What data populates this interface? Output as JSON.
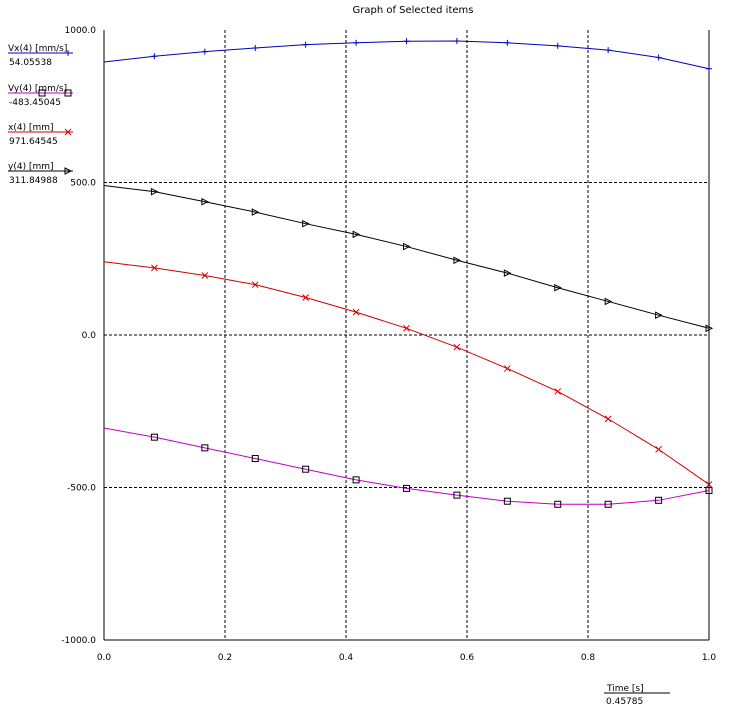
{
  "window": {
    "title": "Graph of Selected items"
  },
  "readout": {
    "x_label": "Time [s]",
    "x_value": "0.45785"
  },
  "chart_data": {
    "type": "line",
    "title": "Graph of Selected items",
    "xlabel": "Time [s]",
    "ylabel": "",
    "xlim": [
      0.0,
      1.0
    ],
    "ylim": [
      -1000.0,
      1000.0
    ],
    "x_ticks": [
      0.0,
      0.2,
      0.4,
      0.6,
      0.8,
      1.0
    ],
    "x_tick_labels": [
      "0.0",
      "0.2",
      "0.4",
      "0.6",
      "0.8",
      "1.0"
    ],
    "y_ticks": [
      -1000.0,
      -500.0,
      0.0,
      500.0,
      1000.0
    ],
    "y_tick_labels": [
      "-1000.0",
      "-500.0",
      "0.0",
      "500.0",
      "1000.0"
    ],
    "grid": true,
    "legend_position": "top-left",
    "x": [
      0.0,
      0.0833,
      0.1667,
      0.25,
      0.3333,
      0.4167,
      0.5,
      0.5833,
      0.6667,
      0.75,
      0.8333,
      0.9167,
      1.0
    ],
    "series": [
      {
        "name": "Vx(4) [mm/s]",
        "readout": "54.05538",
        "color": "#0000c0",
        "marker": "plus",
        "values": [
          895,
          914,
          929,
          941,
          952,
          958,
          963,
          964,
          958,
          948,
          934,
          910,
          873
        ]
      },
      {
        "name": "Vy(4) [mm/s]",
        "readout": "-483.45045",
        "color": "#c000c0",
        "marker": "square",
        "values": [
          -305,
          -335,
          -370,
          -405,
          -440,
          -475,
          -503,
          -525,
          -545,
          -555,
          -555,
          -542,
          -510
        ]
      },
      {
        "name": "x(4) [mm]",
        "readout": "971.64545",
        "color": "#d00000",
        "marker": "x",
        "values": [
          240,
          220,
          195,
          165,
          123,
          75,
          22,
          -40,
          -110,
          -185,
          -275,
          -375,
          -490
        ]
      },
      {
        "name": "y(4) [mm]",
        "readout": "311.84988",
        "color": "#000000",
        "marker": "triangle-right",
        "values": [
          490,
          470,
          437,
          403,
          365,
          330,
          290,
          245,
          203,
          155,
          110,
          65,
          22
        ]
      }
    ]
  }
}
